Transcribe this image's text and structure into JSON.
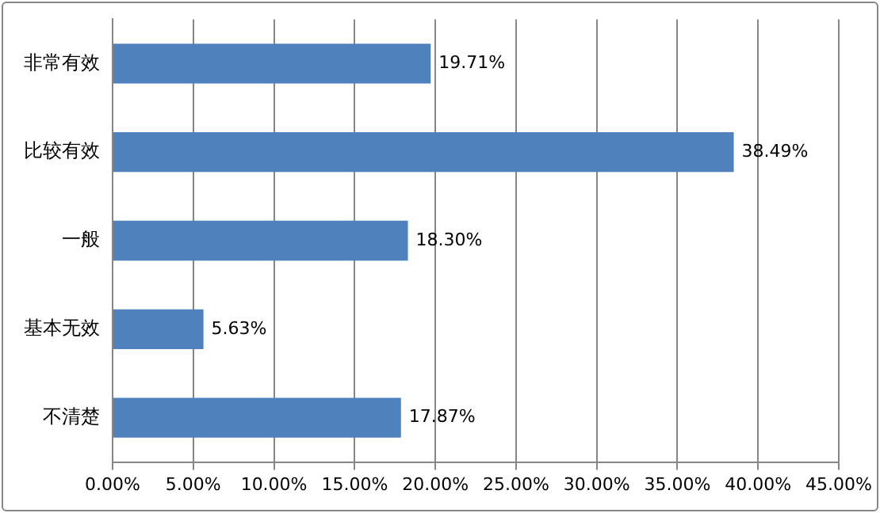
{
  "chart_data": {
    "type": "bar",
    "orientation": "horizontal",
    "categories": [
      "非常有效",
      "比较有效",
      "一般",
      "基本无效",
      "不清楚"
    ],
    "values": [
      19.71,
      38.49,
      18.3,
      5.63,
      17.87
    ],
    "value_labels": [
      "19.71%",
      "38.49%",
      "18.30%",
      "5.63%",
      "17.87%"
    ],
    "color": "#4f81bd",
    "xlim": [
      0,
      45
    ],
    "xticks": [
      {
        "value": 0,
        "label": "0.00%"
      },
      {
        "value": 5,
        "label": "5.00%"
      },
      {
        "value": 10,
        "label": "10.00%"
      },
      {
        "value": 15,
        "label": "15.00%"
      },
      {
        "value": 20,
        "label": "20.00%"
      },
      {
        "value": 25,
        "label": "25.00%"
      },
      {
        "value": 30,
        "label": "30.00%"
      },
      {
        "value": 35,
        "label": "35.00%"
      },
      {
        "value": 40,
        "label": "40.00%"
      },
      {
        "value": 45,
        "label": "45.00%"
      }
    ],
    "grid": "x",
    "legend": false
  }
}
